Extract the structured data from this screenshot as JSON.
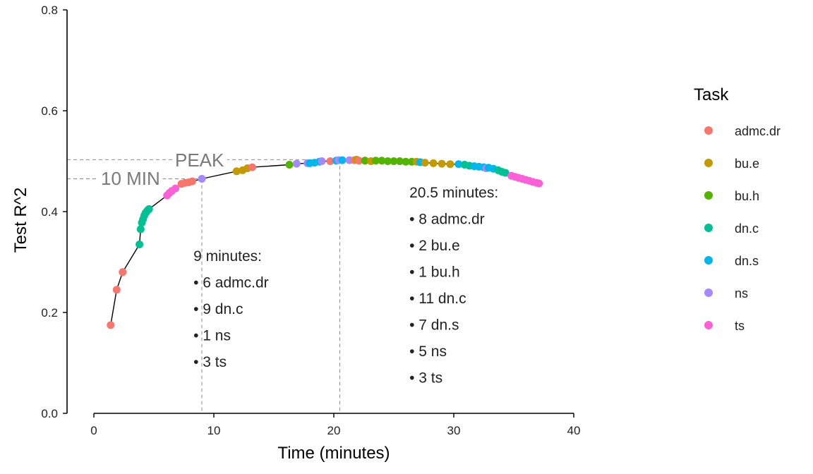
{
  "chart_data": {
    "type": "scatter",
    "xlabel": "Time (minutes)",
    "ylabel": "Test R^2",
    "xlim": [
      0,
      40
    ],
    "ylim": [
      0,
      0.8
    ],
    "x_ticks": [
      0,
      10,
      20,
      30,
      40
    ],
    "y_ticks": [
      0.0,
      0.2,
      0.4,
      0.6,
      0.8
    ],
    "x_tick_labels": [
      "0",
      "10",
      "20",
      "30",
      "40"
    ],
    "y_tick_labels": [
      "0.0",
      "0.2",
      "0.4",
      "0.6",
      "0.8"
    ],
    "grid": false,
    "legend": {
      "title": "Task",
      "position": "right",
      "entries": [
        {
          "label": "admc.dr",
          "color": "#F8766D"
        },
        {
          "label": "bu.e",
          "color": "#C49A00"
        },
        {
          "label": "bu.h",
          "color": "#53B400"
        },
        {
          "label": "dn.c",
          "color": "#00C094"
        },
        {
          "label": "dn.s",
          "color": "#00B6EB"
        },
        {
          "label": "ns",
          "color": "#A58AFF"
        },
        {
          "label": "ts",
          "color": "#FB61D7"
        }
      ]
    },
    "reference_lines": [
      {
        "label": "PEAK",
        "x": 20.5,
        "y": 0.503
      },
      {
        "label": "10 MIN",
        "x": 9,
        "y": 0.465
      }
    ],
    "annotations": [
      {
        "x": 8.3,
        "y": 0.302,
        "lines": [
          "9 minutes:",
          "• 6 admc.dr",
          "• 9 dn.c",
          "• 1 ns",
          "• 3 ts"
        ]
      },
      {
        "x": 26.3,
        "y": 0.428,
        "lines": [
          "20.5 minutes:",
          "• 8 admc.dr",
          "• 2 bu.e",
          "• 1 bu.h",
          "• 11 dn.c",
          "• 7 dn.s",
          "• 5 ns",
          "• 3 ts"
        ]
      }
    ],
    "series": [
      {
        "name": "admc.dr",
        "x": [
          1.4,
          1.9,
          2.4,
          7.3,
          7.6,
          7.9,
          8.2,
          13.2,
          19.7,
          21.7,
          22.1,
          22.6
        ],
        "y": [
          0.175,
          0.245,
          0.28,
          0.455,
          0.457,
          0.458,
          0.46,
          0.488,
          0.5,
          0.502,
          0.501,
          0.501
        ]
      },
      {
        "name": "bu.e",
        "x": [
          11.9,
          12.4,
          12.8,
          21.9,
          23.1,
          26.9,
          27.6,
          28.3,
          29.0,
          29.7
        ],
        "y": [
          0.48,
          0.482,
          0.486,
          0.503,
          0.5,
          0.499,
          0.497,
          0.496,
          0.495,
          0.494
        ]
      },
      {
        "name": "bu.h",
        "x": [
          16.3,
          22.6,
          23.5,
          24.0,
          24.5,
          25.0,
          25.5,
          26.0,
          26.5
        ],
        "y": [
          0.493,
          0.501,
          0.501,
          0.501,
          0.5,
          0.5,
          0.5,
          0.499,
          0.499
        ]
      },
      {
        "name": "dn.c",
        "x": [
          3.8,
          3.9,
          4.0,
          4.1,
          4.2,
          4.3,
          4.4,
          4.5,
          4.6,
          30.9,
          31.3,
          33.7,
          34.0,
          34.3
        ],
        "y": [
          0.335,
          0.365,
          0.378,
          0.385,
          0.392,
          0.397,
          0.4,
          0.403,
          0.405,
          0.493,
          0.491,
          0.482,
          0.479,
          0.477
        ]
      },
      {
        "name": "dn.s",
        "x": [
          18.0,
          18.4,
          18.8,
          20.2,
          20.7,
          27.2,
          30.4,
          31.7,
          32.1,
          32.5,
          32.9,
          33.3
        ],
        "y": [
          0.496,
          0.497,
          0.499,
          0.501,
          0.502,
          0.498,
          0.494,
          0.49,
          0.489,
          0.488,
          0.487,
          0.485
        ]
      },
      {
        "name": "ns",
        "x": [
          9.0,
          16.9,
          17.8,
          19.0,
          20.4,
          21.3,
          32.7
        ],
        "y": [
          0.465,
          0.495,
          0.496,
          0.5,
          0.502,
          0.502,
          0.486
        ]
      },
      {
        "name": "ts",
        "x": [
          6.1,
          6.3,
          6.5,
          6.8,
          34.8,
          35.1,
          35.4,
          35.7,
          36.0,
          36.3,
          36.6,
          36.9,
          37.1
        ],
        "y": [
          0.432,
          0.437,
          0.441,
          0.446,
          0.471,
          0.469,
          0.467,
          0.465,
          0.463,
          0.461,
          0.459,
          0.457,
          0.456
        ]
      }
    ]
  }
}
